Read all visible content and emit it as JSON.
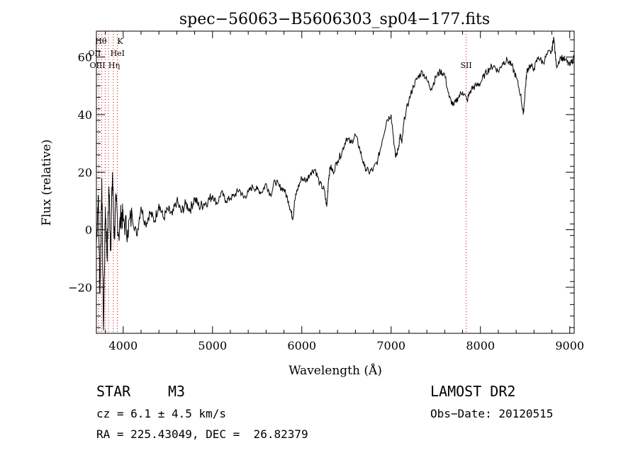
{
  "chart_data": {
    "type": "line",
    "title": "spec−56063−B5606303_sp04−177.fits",
    "xlabel": "Wavelength (Å)",
    "ylabel": "Flux (relative)",
    "xlim": [
      3700,
      9050
    ],
    "ylim": [
      -36,
      69
    ],
    "x_ticks": [
      4000,
      5000,
      6000,
      7000,
      8000,
      9000
    ],
    "y_ticks": [
      -20,
      0,
      20,
      40,
      60
    ],
    "y_tick_labels": [
      "−20",
      "0",
      "20",
      "40",
      "60"
    ],
    "series": [
      {
        "x": [
          3700,
          3720,
          3740,
          3760,
          3780,
          3800,
          3820,
          3840,
          3860,
          3880,
          3900,
          3920,
          3950,
          3980,
          4000,
          4050,
          4100,
          4150,
          4200,
          4250,
          4300,
          4350,
          4400,
          4450,
          4500,
          4550,
          4600,
          4650,
          4700,
          4750,
          4800,
          4850,
          4900,
          4950,
          5000,
          5050,
          5100,
          5150,
          5200,
          5250,
          5300,
          5350,
          5400,
          5450,
          5500,
          5550,
          5600,
          5650,
          5700,
          5750,
          5800,
          5850,
          5880,
          5900,
          5920,
          5950,
          6000,
          6050,
          6100,
          6150,
          6200,
          6250,
          6280,
          6300,
          6320,
          6350,
          6400,
          6450,
          6500,
          6550,
          6600,
          6650,
          6700,
          6750,
          6800,
          6850,
          6900,
          6950,
          7000,
          7050,
          7080,
          7100,
          7120,
          7150,
          7200,
          7250,
          7300,
          7350,
          7400,
          7450,
          7500,
          7550,
          7600,
          7650,
          7700,
          7750,
          7800,
          7850,
          7900,
          7950,
          8000,
          8050,
          8100,
          8150,
          8200,
          8250,
          8300,
          8350,
          8400,
          8450,
          8480,
          8500,
          8520,
          8550,
          8600,
          8650,
          8700,
          8750,
          8800,
          8820,
          8850,
          8900,
          8950,
          9000,
          9050
        ],
        "y": [
          -5,
          12,
          -22,
          18,
          -35,
          8,
          -10,
          15,
          -6,
          20,
          -3,
          10,
          -2,
          6,
          3,
          0,
          5,
          -2,
          8,
          2,
          6,
          3,
          9,
          4,
          7,
          5,
          10,
          6,
          9,
          7,
          11,
          8,
          9,
          10,
          12,
          9,
          13,
          10,
          11,
          12,
          14,
          11,
          13,
          15,
          14,
          13,
          16,
          12,
          17,
          15,
          14,
          10,
          6,
          4,
          10,
          14,
          18,
          17,
          20,
          21,
          16,
          14,
          8,
          18,
          22,
          20,
          24,
          27,
          32,
          30,
          33,
          28,
          22,
          20,
          21,
          24,
          31,
          38,
          40,
          25,
          28,
          33,
          30,
          39,
          45,
          50,
          53,
          55,
          52,
          49,
          53,
          55,
          54,
          46,
          43,
          46,
          48,
          45,
          49,
          50,
          51,
          54,
          56,
          57,
          55,
          58,
          59,
          57,
          53,
          47,
          40,
          48,
          55,
          57,
          56,
          60,
          58,
          61,
          62,
          67,
          57,
          60,
          59,
          57,
          60
        ]
      }
    ],
    "line_markers": [
      {
        "name": "Hθ",
        "x": 3798
      },
      {
        "name": "K",
        "x": 3934
      },
      {
        "name": "OII",
        "x": 3727
      },
      {
        "name": "HeI",
        "x": 3889
      },
      {
        "name": "OIII",
        "x": 3760
      },
      {
        "name": "Hη",
        "x": 3835
      },
      {
        "name": "SII",
        "x": 7840
      }
    ],
    "grid": false,
    "legend": "none"
  },
  "info": {
    "object_class": "STAR",
    "subclass": "M3",
    "survey": "LAMOST DR2",
    "cz": "cz = 6.1 ± 4.5 km/s",
    "obs_date": "Obs−Date: 20120515",
    "coords": "RA = 225.43049, DEC =  26.82379"
  }
}
